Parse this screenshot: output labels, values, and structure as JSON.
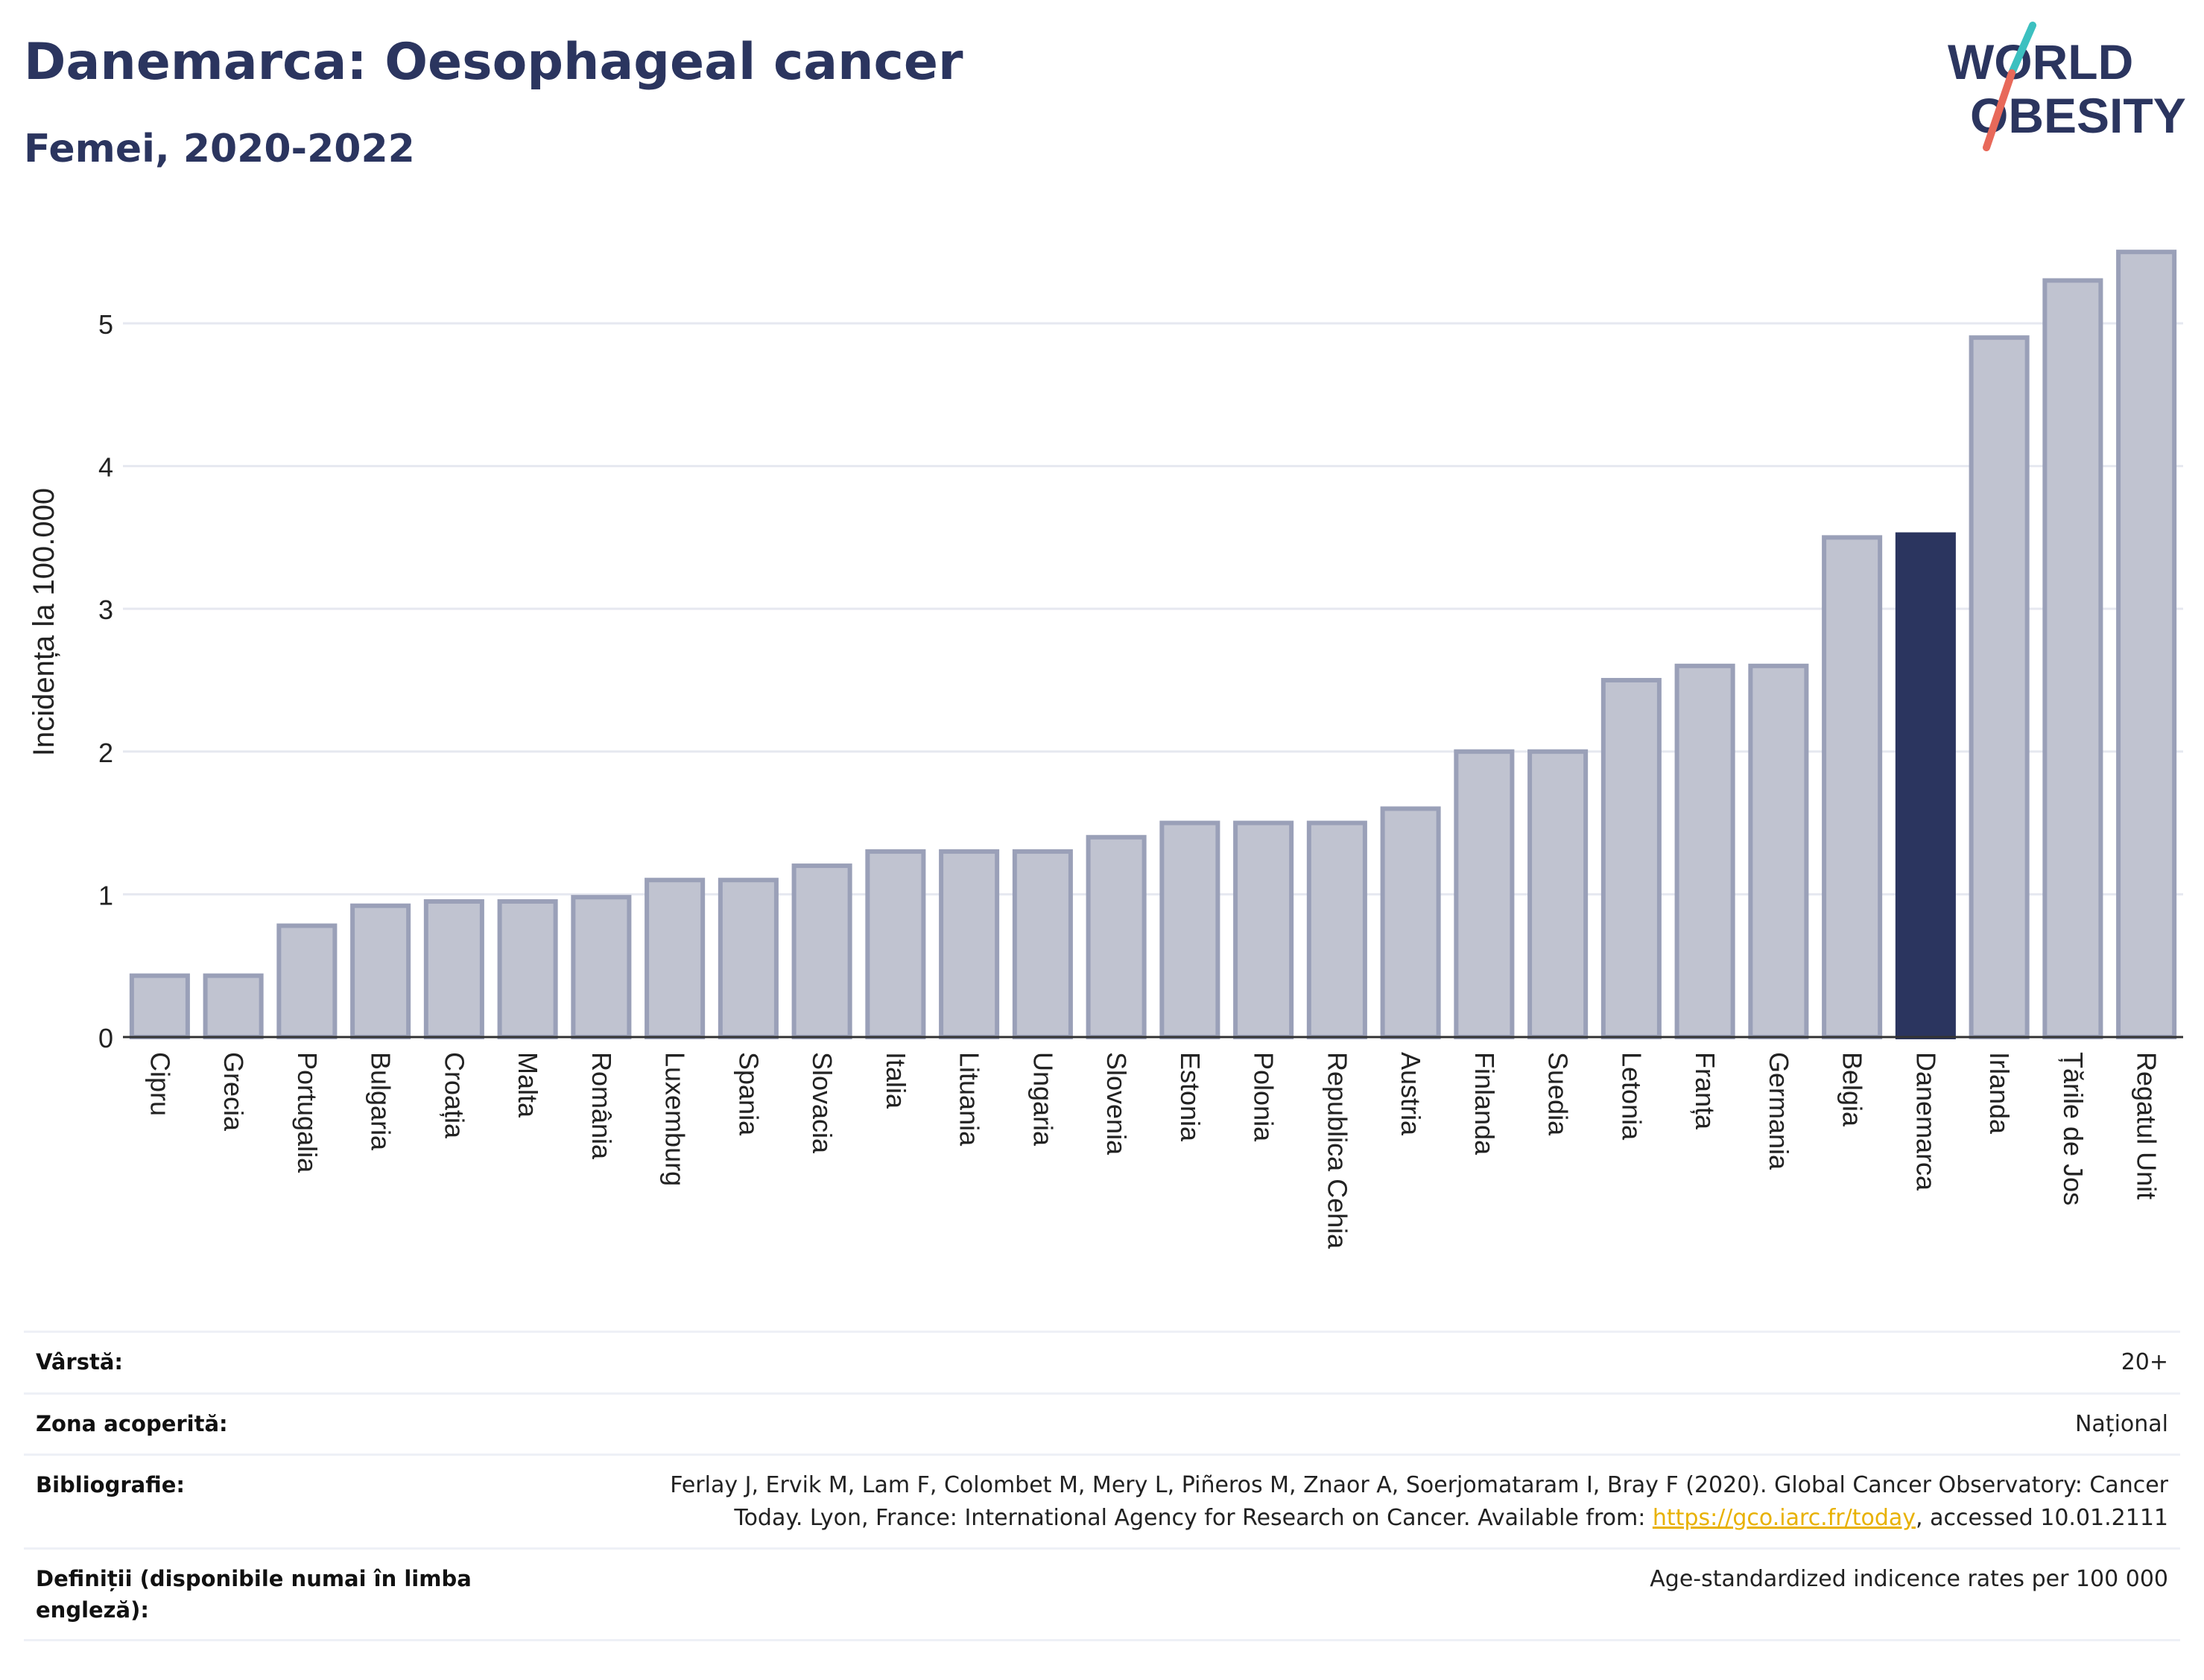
{
  "header": {
    "title": "Danemarca: Oesophageal cancer",
    "subtitle": "Femei, 2020-2022"
  },
  "logo": {
    "line1": "WORLD",
    "line2": "OBESITY",
    "colors": {
      "text": "#2b355f",
      "slash_top": "#3cc0c0",
      "slash_bottom": "#e8695a"
    }
  },
  "chart_data": {
    "type": "bar",
    "ylabel": "Incidența la 100.000",
    "xlabel": "",
    "ylim": [
      0,
      5.6
    ],
    "yticks": [
      0,
      1,
      2,
      3,
      4,
      5
    ],
    "grid": true,
    "highlight": "Danemarca",
    "colors": {
      "bar": "#c0c3d0",
      "bar_border": "#9aa0b8",
      "highlight": "#2b355f",
      "grid": "#e6e8f0"
    },
    "categories": [
      "Cipru",
      "Grecia",
      "Portugalia",
      "Bulgaria",
      "Croația",
      "Malta",
      "România",
      "Luxemburg",
      "Spania",
      "Slovacia",
      "Italia",
      "Lituania",
      "Ungaria",
      "Slovenia",
      "Estonia",
      "Polonia",
      "Republica Cehia",
      "Austria",
      "Finlanda",
      "Suedia",
      "Letonia",
      "Franța",
      "Germania",
      "Belgia",
      "Danemarca",
      "Irlanda",
      "Țările de Jos",
      "Regatul Unit"
    ],
    "values": [
      0.43,
      0.43,
      0.78,
      0.92,
      0.95,
      0.95,
      0.98,
      1.1,
      1.1,
      1.2,
      1.3,
      1.3,
      1.3,
      1.4,
      1.5,
      1.5,
      1.5,
      1.6,
      2.0,
      2.0,
      2.5,
      2.6,
      2.6,
      3.5,
      3.52,
      4.9,
      5.3,
      5.5
    ]
  },
  "meta": {
    "age_label": "Vârstă:",
    "age_value": "20+",
    "zone_label": "Zona acoperită:",
    "zone_value": "Național",
    "bib_label": "Bibliografie:",
    "bib_line1": "Ferlay J, Ervik M, Lam F, Colombet M, Mery L, Piñeros M, Znaor A, Soerjomataram I, Bray F (2020). Global Cancer Observatory: Cancer",
    "bib_line2_prefix": "Today. Lyon, France: International Agency for Research on Cancer. Available from: ",
    "bib_link": "https://gco.iarc.fr/today",
    "bib_line2_suffix": ", accessed 10.01.2111",
    "def_label": "Definiții (disponibile numai în limba engleză):",
    "def_value": "Age-standardized indicence rates per 100 000"
  }
}
